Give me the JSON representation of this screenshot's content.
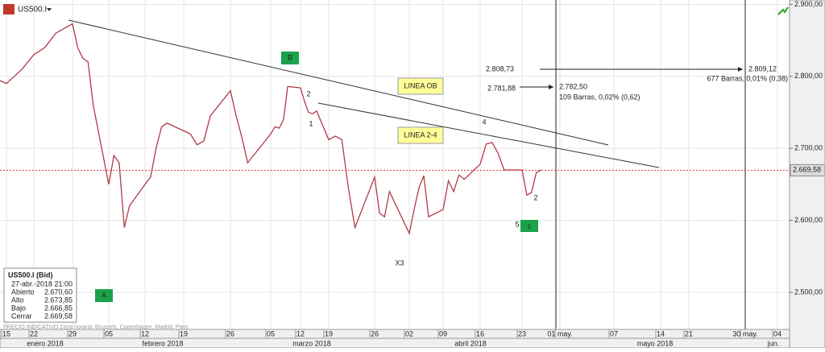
{
  "header": {
    "symbol": "US500.I"
  },
  "chart_data": {
    "type": "line",
    "color": "#b03a48",
    "x": [
      13,
      15,
      17,
      19,
      22,
      24,
      26,
      29,
      30,
      31,
      32,
      33,
      36,
      37,
      38,
      39,
      40,
      43,
      44,
      45,
      46,
      47,
      51,
      52,
      53,
      54,
      57,
      58,
      59,
      60,
      61,
      64,
      65,
      66,
      67,
      68,
      71,
      72,
      73,
      74,
      75,
      78,
      79,
      80,
      81,
      82,
      85,
      86,
      87,
      88,
      92,
      93,
      94,
      95,
      96,
      99,
      100,
      101,
      102,
      103,
      106,
      107,
      108,
      109,
      110,
      113,
      114,
      115,
      116,
      117
    ],
    "values": [
      2795,
      2790,
      2800,
      2810,
      2830,
      2840,
      2860,
      2873,
      2840,
      2825,
      2820,
      2760,
      2650,
      2690,
      2680,
      2590,
      2620,
      2650,
      2660,
      2700,
      2730,
      2735,
      2720,
      2705,
      2710,
      2745,
      2780,
      2745,
      2715,
      2680,
      2690,
      2720,
      2730,
      2728,
      2740,
      2786,
      2784,
      2765,
      2750,
      2748,
      2752,
      2712,
      2717,
      2712,
      2645,
      2590,
      2660,
      2610,
      2605,
      2640,
      2582,
      2615,
      2645,
      2662,
      2605,
      2615,
      2655,
      2640,
      2663,
      2657,
      2678,
      2706,
      2708,
      2693,
      2670,
      2670,
      2635,
      2639,
      2666,
      2670
    ],
    "ylim": [
      2453,
      2906
    ],
    "yticks": [
      {
        "value": 2500,
        "label": "2.500,00"
      },
      {
        "value": 2600,
        "label": "2.600,00"
      },
      {
        "value": 2700,
        "label": "2.700,00"
      },
      {
        "value": 2800,
        "label": "2.800,00"
      },
      {
        "value": 2900,
        "label": "2.900,00"
      }
    ],
    "xticks": [
      {
        "value": 15,
        "label": "15"
      },
      {
        "value": 22,
        "label": "22"
      },
      {
        "value": 29,
        "label": "29"
      },
      {
        "value": 36,
        "label": "05"
      },
      {
        "value": 43,
        "label": "12"
      },
      {
        "value": 50,
        "label": "19"
      },
      {
        "value": 57,
        "label": "26"
      },
      {
        "value": 64,
        "label": "05"
      },
      {
        "value": 71,
        "label": "12"
      },
      {
        "value": 78,
        "label": "19"
      },
      {
        "value": 85,
        "label": "26"
      },
      {
        "value": 92,
        "label": "02"
      },
      {
        "value": 99,
        "label": "09"
      },
      {
        "value": 106,
        "label": "16"
      },
      {
        "value": 113,
        "label": "23"
      },
      {
        "value": 121,
        "label": "01 may."
      },
      {
        "value": 127,
        "label": "07"
      },
      {
        "value": 134,
        "label": "14"
      },
      {
        "value": 141,
        "label": "21"
      },
      {
        "value": 150,
        "label": "30 may."
      },
      {
        "value": 155,
        "label": "04"
      }
    ],
    "months": [
      "enero 2018",
      "febrero 2018",
      "marzo 2018",
      "abril 2018",
      "mayo 2018",
      "jun."
    ],
    "last_price": {
      "value": 2669.58,
      "label": "2.669,58"
    },
    "grid": true
  },
  "annotations": {
    "wave_a": "A",
    "wave_b": "B",
    "wave_c": "c",
    "w1": "1",
    "w2": "2",
    "w4": "4",
    "x3": "X3",
    "w5": "5",
    "w2b": "2",
    "line_ob": "LINEA OB",
    "line_24": "LINEA 2-4"
  },
  "measures": [
    {
      "from": "2.808,73",
      "to": "2.809,12",
      "info": "677 Barras, 0,01% (0,38)"
    },
    {
      "from": "2.781,88",
      "to": "2.782,50",
      "info": "109 Barras, 0,02% (0,62)"
    }
  ],
  "info_box": {
    "title": "US500.I (Bid)",
    "date": "27-abr.-2018 21:00",
    "rows": [
      [
        "Abierto",
        "2.670,60"
      ],
      [
        "Alto",
        "2.673,85"
      ],
      [
        "Bajo",
        "2.666,85"
      ],
      [
        "Cerrar",
        "2.669,58"
      ]
    ]
  },
  "footer": "PRECIO INDICATIVO  Zona horaria: Brussels, Copenhagen, Madrid, Paris"
}
